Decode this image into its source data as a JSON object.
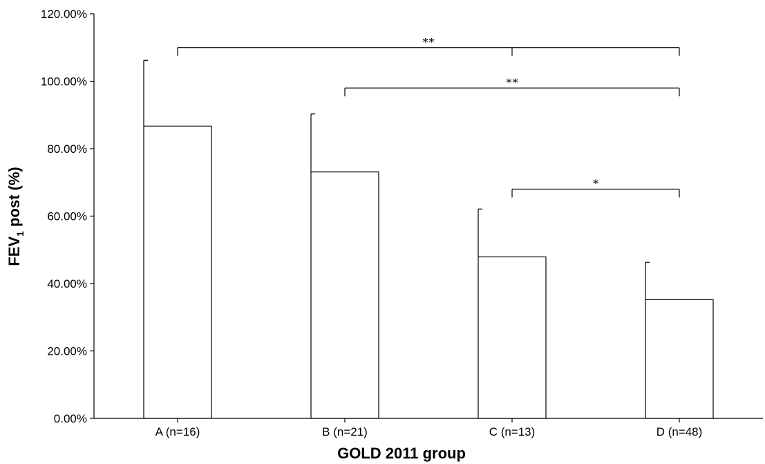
{
  "chart_data": {
    "type": "bar",
    "xlabel": "GOLD 2011 group",
    "ylabel_main": "FEV",
    "ylabel_sub": "1",
    "ylabel_rest": " post (%)",
    "ylim": [
      0,
      120
    ],
    "yticks": [
      0,
      20,
      40,
      60,
      80,
      100,
      120
    ],
    "ytick_labels": [
      "0.00%",
      "20.00%",
      "40.00%",
      "60.00%",
      "80.00%",
      "100.00%",
      "120.00%"
    ],
    "categories": [
      "A (n=16)",
      "B (n=21)",
      "C (n=13)",
      "D (n=48)"
    ],
    "values": [
      86.7,
      73.1,
      47.9,
      35.2
    ],
    "error_upper": [
      106.2,
      90.3,
      62.1,
      46.3
    ],
    "bar_fill": "#ffffff",
    "bar_stroke": "#000000",
    "grid": false,
    "significance": [
      {
        "from": 0,
        "to": 3,
        "label": "**",
        "y": 110,
        "mid_tick": 2
      },
      {
        "from": 1,
        "to": 3,
        "label": "**",
        "y": 98
      },
      {
        "from": 2,
        "to": 3,
        "label": "*",
        "y": 68
      }
    ]
  }
}
